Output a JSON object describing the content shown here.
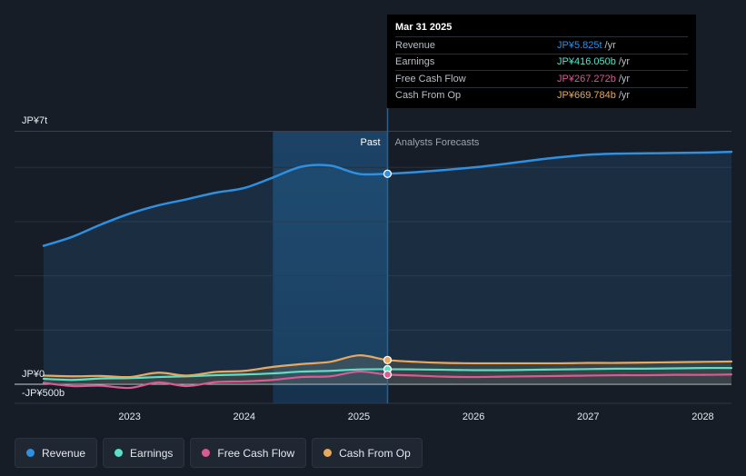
{
  "chart_data": {
    "type": "line",
    "currency_unit": "JP¥",
    "y_axis": {
      "top_label": "JP¥7t",
      "zero_label": "JP¥0",
      "bottom_label": "-JP¥500b",
      "ylim": [
        -0.5,
        7.0
      ],
      "unit": "trillion JP¥"
    },
    "x_axis": {
      "ticks": [
        "2023",
        "2024",
        "2025",
        "2026",
        "2027",
        "2028"
      ],
      "xlim": [
        2022.25,
        2028.25
      ]
    },
    "past_label": "Past",
    "forecast_label": "Analysts Forecasts",
    "divider_x": 2025.25,
    "shade_start_x": 2024.25,
    "series": [
      {
        "name": "Revenue",
        "color": "#2f8fe0",
        "marker_value": 5.825,
        "points": [
          [
            2022.25,
            3.83
          ],
          [
            2022.5,
            4.08
          ],
          [
            2022.75,
            4.42
          ],
          [
            2023.0,
            4.72
          ],
          [
            2023.25,
            4.95
          ],
          [
            2023.5,
            5.12
          ],
          [
            2023.75,
            5.3
          ],
          [
            2024.0,
            5.43
          ],
          [
            2024.25,
            5.72
          ],
          [
            2024.5,
            6.02
          ],
          [
            2024.75,
            6.05
          ],
          [
            2025.0,
            5.82
          ],
          [
            2025.25,
            5.825
          ],
          [
            2025.5,
            5.87
          ],
          [
            2025.75,
            5.93
          ],
          [
            2026.0,
            6.0
          ],
          [
            2026.25,
            6.09
          ],
          [
            2026.5,
            6.19
          ],
          [
            2026.75,
            6.28
          ],
          [
            2027.0,
            6.35
          ],
          [
            2027.25,
            6.38
          ],
          [
            2027.5,
            6.39
          ],
          [
            2027.75,
            6.4
          ],
          [
            2028.0,
            6.41
          ],
          [
            2028.25,
            6.43
          ]
        ]
      },
      {
        "name": "Earnings",
        "color": "#5be0c8",
        "marker_value": 0.416,
        "points": [
          [
            2022.25,
            0.15
          ],
          [
            2022.5,
            0.12
          ],
          [
            2022.75,
            0.16
          ],
          [
            2023.0,
            0.17
          ],
          [
            2023.25,
            0.2
          ],
          [
            2023.5,
            0.22
          ],
          [
            2023.75,
            0.25
          ],
          [
            2024.0,
            0.27
          ],
          [
            2024.25,
            0.3
          ],
          [
            2024.5,
            0.35
          ],
          [
            2024.75,
            0.37
          ],
          [
            2025.0,
            0.41
          ],
          [
            2025.25,
            0.416
          ],
          [
            2025.5,
            0.41
          ],
          [
            2025.75,
            0.4
          ],
          [
            2026.0,
            0.39
          ],
          [
            2026.25,
            0.39
          ],
          [
            2026.5,
            0.4
          ],
          [
            2026.75,
            0.41
          ],
          [
            2027.0,
            0.42
          ],
          [
            2027.25,
            0.43
          ],
          [
            2027.5,
            0.43
          ],
          [
            2027.75,
            0.44
          ],
          [
            2028.0,
            0.45
          ],
          [
            2028.25,
            0.45
          ]
        ]
      },
      {
        "name": "Free Cash Flow",
        "color": "#d95b92",
        "marker_value": 0.267,
        "points": [
          [
            2022.25,
            0.04
          ],
          [
            2022.5,
            -0.05
          ],
          [
            2022.75,
            -0.04
          ],
          [
            2023.0,
            -0.1
          ],
          [
            2023.25,
            0.05
          ],
          [
            2023.5,
            -0.05
          ],
          [
            2023.75,
            0.06
          ],
          [
            2024.0,
            0.08
          ],
          [
            2024.25,
            0.12
          ],
          [
            2024.5,
            0.2
          ],
          [
            2024.75,
            0.22
          ],
          [
            2025.0,
            0.35
          ],
          [
            2025.25,
            0.267
          ],
          [
            2025.5,
            0.24
          ],
          [
            2025.75,
            0.21
          ],
          [
            2026.0,
            0.2
          ],
          [
            2026.25,
            0.21
          ],
          [
            2026.5,
            0.22
          ],
          [
            2026.75,
            0.23
          ],
          [
            2027.0,
            0.24
          ],
          [
            2027.25,
            0.25
          ],
          [
            2027.5,
            0.25
          ],
          [
            2027.75,
            0.26
          ],
          [
            2028.0,
            0.26
          ],
          [
            2028.25,
            0.27
          ]
        ]
      },
      {
        "name": "Cash From Op",
        "color": "#e8a860",
        "marker_value": 0.67,
        "points": [
          [
            2022.25,
            0.24
          ],
          [
            2022.5,
            0.22
          ],
          [
            2022.75,
            0.23
          ],
          [
            2023.0,
            0.2
          ],
          [
            2023.25,
            0.32
          ],
          [
            2023.5,
            0.24
          ],
          [
            2023.75,
            0.34
          ],
          [
            2024.0,
            0.37
          ],
          [
            2024.25,
            0.48
          ],
          [
            2024.5,
            0.56
          ],
          [
            2024.75,
            0.62
          ],
          [
            2025.0,
            0.8
          ],
          [
            2025.25,
            0.67
          ],
          [
            2025.5,
            0.62
          ],
          [
            2025.75,
            0.59
          ],
          [
            2026.0,
            0.58
          ],
          [
            2026.25,
            0.58
          ],
          [
            2026.5,
            0.58
          ],
          [
            2026.75,
            0.58
          ],
          [
            2027.0,
            0.59
          ],
          [
            2027.25,
            0.59
          ],
          [
            2027.5,
            0.6
          ],
          [
            2027.75,
            0.61
          ],
          [
            2028.0,
            0.62
          ],
          [
            2028.25,
            0.63
          ]
        ]
      }
    ]
  },
  "tooltip": {
    "date": "Mar 31 2025",
    "rows": [
      {
        "name": "Revenue",
        "value": "JP¥5.825t",
        "unit": "/yr",
        "color": "#2f8fe0"
      },
      {
        "name": "Earnings",
        "value": "JP¥416.050b",
        "unit": "/yr",
        "color": "#5be0c8"
      },
      {
        "name": "Free Cash Flow",
        "value": "JP¥267.272b",
        "unit": "/yr",
        "color": "#d95b92"
      },
      {
        "name": "Cash From Op",
        "value": "JP¥669.784b",
        "unit": "/yr",
        "color": "#e8a860"
      }
    ]
  },
  "legend": [
    {
      "label": "Revenue",
      "color": "#2f8fe0"
    },
    {
      "label": "Earnings",
      "color": "#5be0c8"
    },
    {
      "label": "Free Cash Flow",
      "color": "#d95b92"
    },
    {
      "label": "Cash From Op",
      "color": "#e8a860"
    }
  ]
}
